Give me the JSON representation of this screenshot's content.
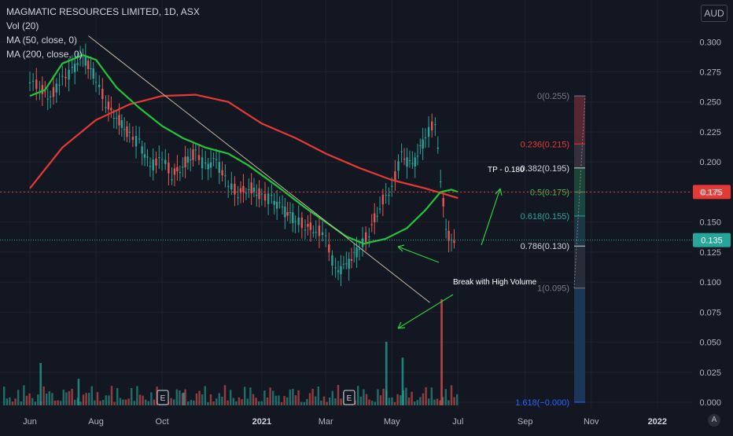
{
  "header": {
    "title": "MAGMATIC RESOURCES LIMITED, 1D, ASX",
    "indicators": [
      "Vol (20)",
      "MA (50, close, 0)",
      "MA (200, close, 0)"
    ],
    "currency": "AUD",
    "auto_label": "A"
  },
  "price_labels": {
    "level_line": "0.175",
    "current": "0.135"
  },
  "annotations": {
    "take_profit": "TP - 0.180",
    "breakout": "Break with High Volume",
    "earnings_marker": "E"
  },
  "colors": {
    "background": "#131722",
    "candle_up": "#26a69a",
    "candle_down": "#ef5350",
    "ma50": "#22c53a",
    "ma200": "#e53935",
    "trendline": "#c8b6a0",
    "arrow": "#2ecc40",
    "level_line": "#e53935",
    "current_line": "#26a69a"
  },
  "chart_data": {
    "type": "candlestick",
    "y_axis_ticks": [
      "0.300",
      "0.275",
      "0.250",
      "0.225",
      "0.200",
      "0.175",
      "0.150",
      "0.125",
      "0.100",
      "0.075",
      "0.050",
      "0.025",
      "0.000"
    ],
    "ylim": [
      0.0,
      0.31
    ],
    "x_axis_ticks": [
      "Jun",
      "Aug",
      "Oct",
      "2021",
      "Mar",
      "May",
      "Jul",
      "Sep",
      "Nov",
      "2022"
    ],
    "close_series": [
      {
        "date": "2020-06-01",
        "close": 0.27
      },
      {
        "date": "2020-06-10",
        "close": 0.262
      },
      {
        "date": "2020-06-20",
        "close": 0.255
      },
      {
        "date": "2020-07-01",
        "close": 0.268
      },
      {
        "date": "2020-07-10",
        "close": 0.275
      },
      {
        "date": "2020-07-20",
        "close": 0.288
      },
      {
        "date": "2020-08-01",
        "close": 0.27
      },
      {
        "date": "2020-08-10",
        "close": 0.25
      },
      {
        "date": "2020-08-20",
        "close": 0.238
      },
      {
        "date": "2020-09-01",
        "close": 0.222
      },
      {
        "date": "2020-09-10",
        "close": 0.215
      },
      {
        "date": "2020-09-20",
        "close": 0.195
      },
      {
        "date": "2020-10-01",
        "close": 0.205
      },
      {
        "date": "2020-10-10",
        "close": 0.19
      },
      {
        "date": "2020-10-20",
        "close": 0.198
      },
      {
        "date": "2020-11-01",
        "close": 0.208
      },
      {
        "date": "2020-11-10",
        "close": 0.195
      },
      {
        "date": "2020-11-20",
        "close": 0.2
      },
      {
        "date": "2020-12-01",
        "close": 0.182
      },
      {
        "date": "2020-12-10",
        "close": 0.175
      },
      {
        "date": "2020-12-20",
        "close": 0.18
      },
      {
        "date": "2021-01-01",
        "close": 0.172
      },
      {
        "date": "2021-01-10",
        "close": 0.168
      },
      {
        "date": "2021-01-20",
        "close": 0.16
      },
      {
        "date": "2021-02-01",
        "close": 0.152
      },
      {
        "date": "2021-02-10",
        "close": 0.148
      },
      {
        "date": "2021-02-20",
        "close": 0.145
      },
      {
        "date": "2021-03-01",
        "close": 0.138
      },
      {
        "date": "2021-03-10",
        "close": 0.108
      },
      {
        "date": "2021-03-20",
        "close": 0.112
      },
      {
        "date": "2021-04-01",
        "close": 0.128
      },
      {
        "date": "2021-04-10",
        "close": 0.142
      },
      {
        "date": "2021-04-20",
        "close": 0.165
      },
      {
        "date": "2021-05-01",
        "close": 0.18
      },
      {
        "date": "2021-05-10",
        "close": 0.205
      },
      {
        "date": "2021-05-20",
        "close": 0.195
      },
      {
        "date": "2021-06-01",
        "close": 0.22
      },
      {
        "date": "2021-06-10",
        "close": 0.235
      },
      {
        "date": "2021-06-15",
        "close": 0.188
      },
      {
        "date": "2021-06-20",
        "close": 0.145
      },
      {
        "date": "2021-06-25",
        "close": 0.132
      },
      {
        "date": "2021-06-30",
        "close": 0.135
      }
    ],
    "ma50": [
      {
        "date": "2020-06-01",
        "value": 0.255
      },
      {
        "date": "2020-06-15",
        "value": 0.26
      },
      {
        "date": "2020-07-01",
        "value": 0.282
      },
      {
        "date": "2020-07-20",
        "value": 0.289
      },
      {
        "date": "2020-08-01",
        "value": 0.285
      },
      {
        "date": "2020-08-20",
        "value": 0.262
      },
      {
        "date": "2020-09-10",
        "value": 0.245
      },
      {
        "date": "2020-10-01",
        "value": 0.23
      },
      {
        "date": "2020-10-20",
        "value": 0.22
      },
      {
        "date": "2020-11-10",
        "value": 0.212
      },
      {
        "date": "2020-12-01",
        "value": 0.207
      },
      {
        "date": "2020-12-20",
        "value": 0.197
      },
      {
        "date": "2021-01-15",
        "value": 0.18
      },
      {
        "date": "2021-02-10",
        "value": 0.162
      },
      {
        "date": "2021-03-01",
        "value": 0.15
      },
      {
        "date": "2021-03-20",
        "value": 0.138
      },
      {
        "date": "2021-04-05",
        "value": 0.132
      },
      {
        "date": "2021-04-25",
        "value": 0.136
      },
      {
        "date": "2021-05-15",
        "value": 0.145
      },
      {
        "date": "2021-06-01",
        "value": 0.16
      },
      {
        "date": "2021-06-15",
        "value": 0.175
      },
      {
        "date": "2021-06-25",
        "value": 0.177
      },
      {
        "date": "2021-07-01",
        "value": 0.175
      }
    ],
    "ma200": [
      {
        "date": "2020-06-01",
        "value": 0.178
      },
      {
        "date": "2020-07-01",
        "value": 0.212
      },
      {
        "date": "2020-08-01",
        "value": 0.235
      },
      {
        "date": "2020-09-01",
        "value": 0.248
      },
      {
        "date": "2020-10-01",
        "value": 0.255
      },
      {
        "date": "2020-11-01",
        "value": 0.256
      },
      {
        "date": "2020-12-01",
        "value": 0.25
      },
      {
        "date": "2021-01-01",
        "value": 0.232
      },
      {
        "date": "2021-02-01",
        "value": 0.22
      },
      {
        "date": "2021-03-01",
        "value": 0.207
      },
      {
        "date": "2021-04-01",
        "value": 0.195
      },
      {
        "date": "2021-05-01",
        "value": 0.185
      },
      {
        "date": "2021-06-01",
        "value": 0.178
      },
      {
        "date": "2021-07-01",
        "value": 0.17
      }
    ],
    "fibonacci": [
      {
        "ratio": "0",
        "price": 0.255,
        "label": "0(0.255)",
        "color": "#787b86"
      },
      {
        "ratio": "0.236",
        "price": 0.215,
        "label": "0.236(0.215)",
        "color": "#e53935"
      },
      {
        "ratio": "0.382",
        "price": 0.195,
        "label": "0.382(0.195)",
        "color": "#d1d4dc"
      },
      {
        "ratio": "0.5",
        "price": 0.175,
        "label": "0.5(0.175)",
        "color": "#4caf50"
      },
      {
        "ratio": "0.618",
        "price": 0.155,
        "label": "0.618(0.155)",
        "color": "#26a69a"
      },
      {
        "ratio": "0.786",
        "price": 0.13,
        "label": "0.786(0.130)",
        "color": "#d1d4dc"
      },
      {
        "ratio": "1",
        "price": 0.095,
        "label": "1(0.095)",
        "color": "#787b86"
      },
      {
        "ratio": "1.618",
        "price": 0.0,
        "label": "1.618(−0.000)",
        "color": "#2962ff"
      }
    ],
    "horizontal_levels": [
      0.175,
      0.135
    ],
    "volume_spikes": [
      {
        "date": "2020-06-10",
        "volume": 0.4
      },
      {
        "date": "2020-07-15",
        "volume": 0.25
      },
      {
        "date": "2020-10-20",
        "volume": 0.12
      },
      {
        "date": "2021-04-25",
        "volume": 0.6
      },
      {
        "date": "2021-05-10",
        "volume": 0.45
      },
      {
        "date": "2021-06-15",
        "volume": 1.0
      }
    ]
  }
}
